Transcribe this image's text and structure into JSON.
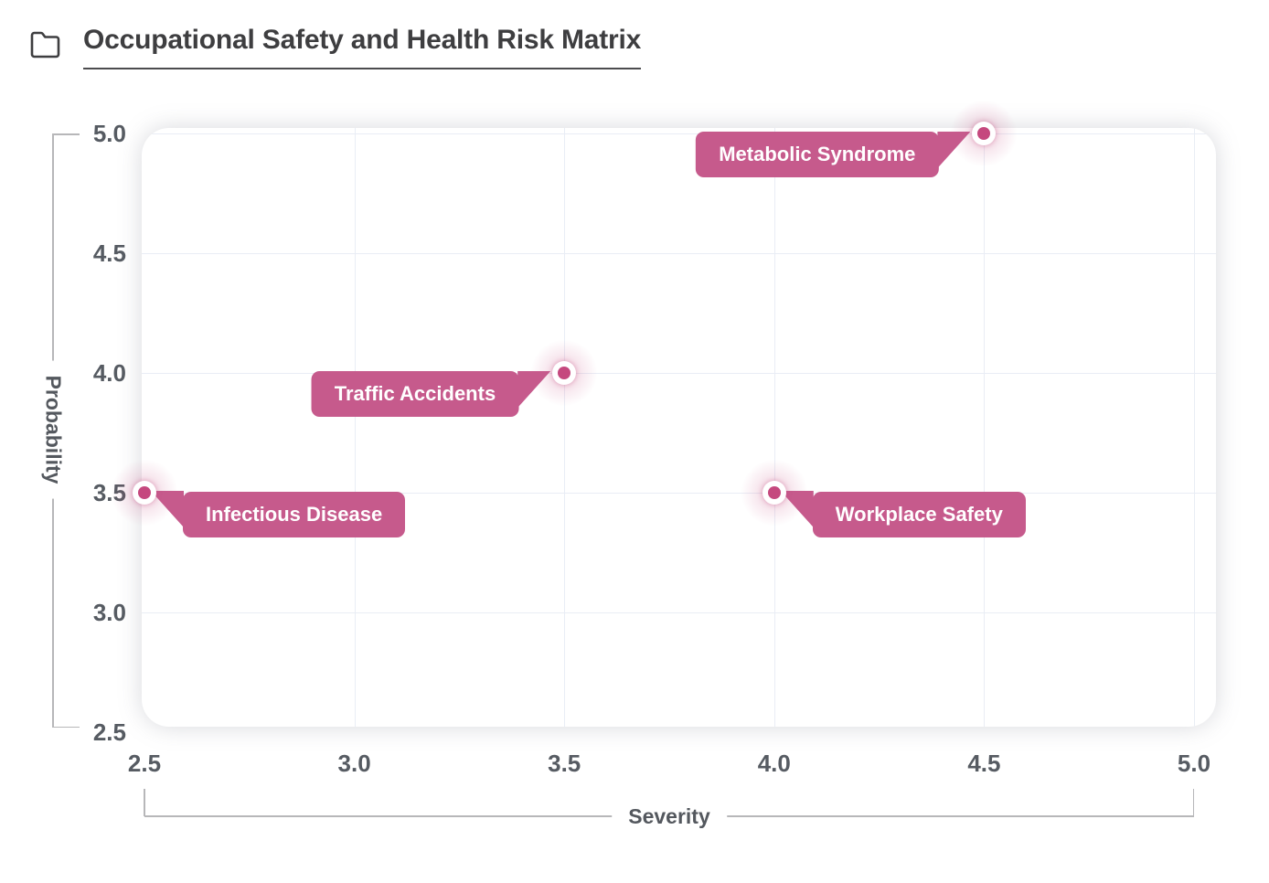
{
  "header": {
    "title": "Occupational Safety and Health Risk Matrix",
    "icon": "folder-icon"
  },
  "chart_data": {
    "type": "scatter",
    "title": "Occupational Safety and Health Risk Matrix",
    "xlabel": "Severity",
    "ylabel": "Probability",
    "xlim": [
      2.5,
      5.0
    ],
    "ylim": [
      2.5,
      5.0
    ],
    "x_ticks": [
      "2.5",
      "3.0",
      "3.5",
      "4.0",
      "4.5",
      "5.0"
    ],
    "y_ticks": [
      "2.5",
      "3.0",
      "3.5",
      "4.0",
      "4.5",
      "5.0"
    ],
    "grid": true,
    "legend": "none",
    "points": [
      {
        "label": "Metabolic Syndrome",
        "x": 4.5,
        "y": 5.0,
        "label_side": "left"
      },
      {
        "label": "Traffic Accidents",
        "x": 3.5,
        "y": 4.0,
        "label_side": "left"
      },
      {
        "label": "Infectious Disease",
        "x": 2.5,
        "y": 3.5,
        "label_side": "right"
      },
      {
        "label": "Workplace Safety",
        "x": 4.0,
        "y": 3.5,
        "label_side": "right"
      }
    ],
    "colors": {
      "marker": "#c5487e",
      "marker_ring": "#ffffff",
      "label_bg": "#c65a8c",
      "label_text": "#ffffff",
      "grid": "#e9edf5",
      "axis_text": "#565b62",
      "bracket": "#b7b7b9",
      "title_text": "#3e3e40"
    }
  }
}
